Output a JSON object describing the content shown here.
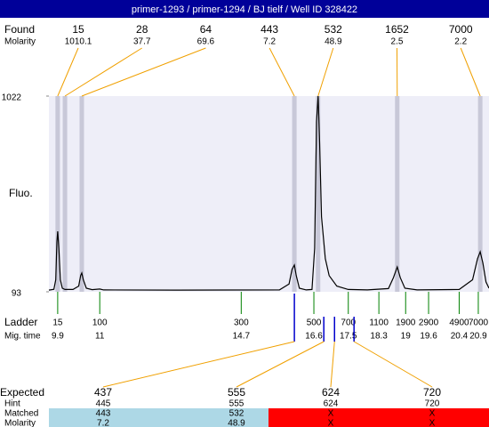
{
  "chart_data": {
    "type": "line",
    "title": "primer-1293 / primer-1294 / BJ tielf / Well ID 328422",
    "y_label": "Fluo.",
    "ylim": [
      93,
      1022
    ],
    "yticks": [
      93,
      1022
    ],
    "xlim": [
      9.67,
      21.18
    ],
    "x": [
      9.67,
      9.8,
      9.85,
      9.88,
      9.9,
      9.93,
      9.97,
      10.02,
      10.09,
      10.3,
      10.45,
      10.5,
      10.53,
      10.57,
      10.65,
      10.8,
      11.0,
      11.1,
      13.0,
      15.7,
      15.95,
      16.03,
      16.09,
      16.14,
      16.22,
      16.4,
      16.55,
      16.62,
      16.67,
      16.71,
      16.75,
      16.8,
      16.9,
      17.0,
      17.2,
      17.5,
      18.0,
      18.55,
      18.68,
      18.78,
      18.86,
      18.98,
      19.3,
      20.4,
      20.75,
      20.88,
      20.95,
      21.02,
      21.1,
      21.18
    ],
    "series": [
      {
        "color": "#000000",
        "values": [
          101,
          105,
          150,
          330,
          380,
          300,
          150,
          110,
          104,
          104,
          120,
          170,
          182,
          150,
          110,
          103,
          106,
          102,
          101,
          102,
          130,
          200,
          220,
          170,
          110,
          102,
          104,
          300,
          900,
          1022,
          800,
          450,
          250,
          170,
          120,
          104,
          102,
          108,
          160,
          211,
          160,
          110,
          102,
          104,
          150,
          250,
          283,
          230,
          140,
          110
        ]
      }
    ],
    "found": {
      "label": "Found",
      "sublabel": "Molarity",
      "sizes": [
        15,
        28,
        64,
        443,
        532,
        1652,
        7000
      ],
      "molarity": [
        1010.1,
        37.7,
        69.6,
        7.2,
        48.9,
        2.5,
        2.2
      ],
      "times": [
        9.9,
        10.09,
        10.53,
        16.09,
        16.71,
        18.78,
        20.95
      ]
    },
    "ladder": {
      "label": "Ladder",
      "sublabel": "Mig. time",
      "sizes": [
        15,
        100,
        300,
        500,
        700,
        1100,
        1900,
        2900,
        4900,
        7000
      ],
      "times": [
        9.9,
        11,
        14.7,
        16.6,
        17.5,
        18.3,
        19,
        19.6,
        20.4,
        20.9
      ]
    },
    "expected": {
      "label": "Expected",
      "sizes": [
        437,
        555,
        624,
        720
      ],
      "times": [
        16.09,
        16.86,
        17.14,
        17.65
      ],
      "hint_label": "Hint",
      "hint": [
        445,
        555,
        624,
        720
      ],
      "matched_label": "Matched",
      "matched": [
        443,
        532,
        "X",
        "X"
      ],
      "molarity_label": "Molarity",
      "molarity": [
        7.2,
        48.9,
        "X",
        "X"
      ]
    }
  }
}
